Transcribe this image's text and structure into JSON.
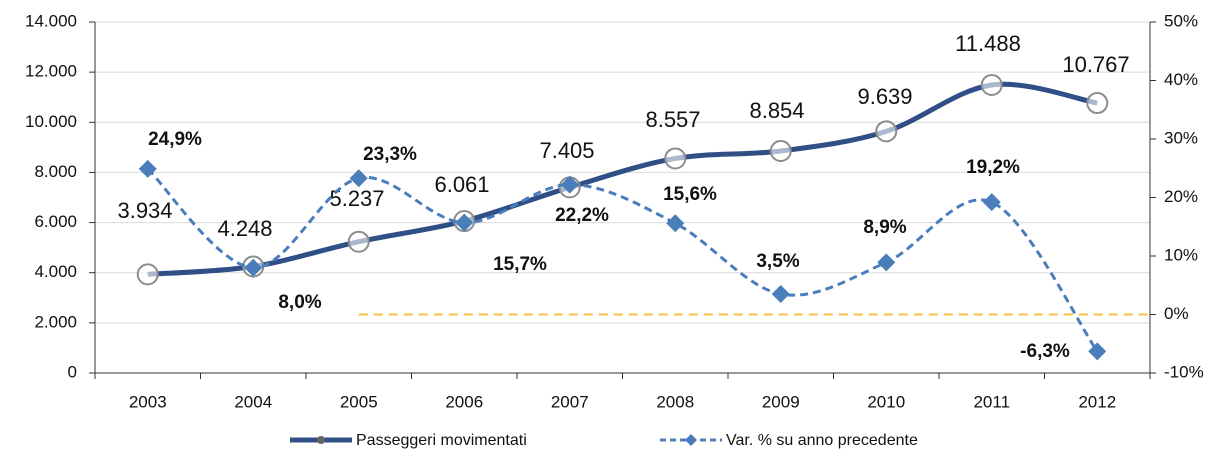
{
  "chart_data": {
    "type": "line",
    "categories": [
      "2003",
      "2004",
      "2005",
      "2006",
      "2007",
      "2008",
      "2009",
      "2010",
      "2011",
      "2012"
    ],
    "series": [
      {
        "name": "Passeggeri movimentati",
        "color": "#2f4f86",
        "values": [
          3934,
          4248,
          5237,
          6061,
          7405,
          8557,
          8854,
          9639,
          11488,
          10767
        ],
        "value_labels": [
          "3.934",
          "4.248",
          "5.237",
          "6.061",
          "7.405",
          "8.557",
          "8.854",
          "9.639",
          "11.488",
          "10.767"
        ]
      },
      {
        "name": "Var. % su anno precedente",
        "color": "#4a7ebb",
        "axis": "y2",
        "values": [
          24.9,
          8.0,
          23.3,
          15.7,
          22.2,
          15.6,
          3.5,
          8.9,
          19.2,
          -6.3
        ],
        "value_labels": [
          "24,9%",
          "8,0%",
          "23,3%",
          "15,7%",
          "22,2%",
          "15,6%",
          "3,5%",
          "8,9%",
          "19,2%",
          "-6,3%"
        ]
      }
    ],
    "ylim": [
      0,
      14000
    ],
    "yticks": [
      0,
      {
        "value": 2000,
        "label": "2.000"
      },
      {
        "value": 4000,
        "label": "4.000"
      },
      {
        "value": 6000,
        "label": "6.000"
      },
      {
        "value": 8000,
        "label": "8.000"
      },
      {
        "value": 10000,
        "label": "10.000"
      },
      {
        "value": 12000,
        "label": "12.000"
      },
      {
        "value": 14000,
        "label": "14.000"
      }
    ],
    "y2lim": [
      -10,
      50
    ],
    "y2ticks": [
      {
        "value": -10,
        "label": "-10%"
      },
      {
        "value": 0,
        "label": "0%"
      },
      {
        "value": 10,
        "label": "10%"
      },
      {
        "value": 20,
        "label": "20%"
      },
      {
        "value": 30,
        "label": "30%"
      },
      {
        "value": 40,
        "label": "40%"
      },
      {
        "value": 50,
        "label": "50%"
      }
    ],
    "grid": true,
    "reference_line": {
      "axis": "y2",
      "value": 0,
      "color": "#f5c242"
    }
  }
}
